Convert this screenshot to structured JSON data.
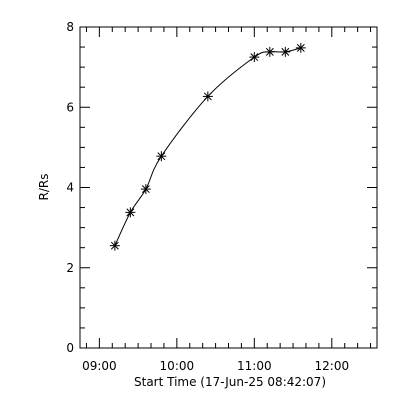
{
  "chart_data": {
    "type": "line",
    "title": "",
    "xlabel": "Start Time (17-Jun-25 08:42:07)",
    "ylabel": "R/Rs",
    "x_unit": "time",
    "xlim": [
      "08:45",
      "12:35"
    ],
    "ylim": [
      0,
      8
    ],
    "xticks": [
      "09:00",
      "10:00",
      "11:00",
      "12:00"
    ],
    "yticks": [
      0,
      2,
      4,
      6,
      8
    ],
    "x_minor_step_minutes": 10,
    "y_minor_step": 0.5,
    "grid": false,
    "legend": "none",
    "series": [
      {
        "marker": "asterisk",
        "line": "smooth",
        "points": [
          {
            "x": "09:12",
            "y": 2.55
          },
          {
            "x": "09:24",
            "y": 3.38
          },
          {
            "x": "09:36",
            "y": 3.96
          },
          {
            "x": "09:48",
            "y": 4.78
          },
          {
            "x": "10:24",
            "y": 6.27
          },
          {
            "x": "11:00",
            "y": 7.25
          },
          {
            "x": "11:12",
            "y": 7.38
          },
          {
            "x": "11:24",
            "y": 7.38
          },
          {
            "x": "11:36",
            "y": 7.48
          }
        ]
      }
    ]
  }
}
